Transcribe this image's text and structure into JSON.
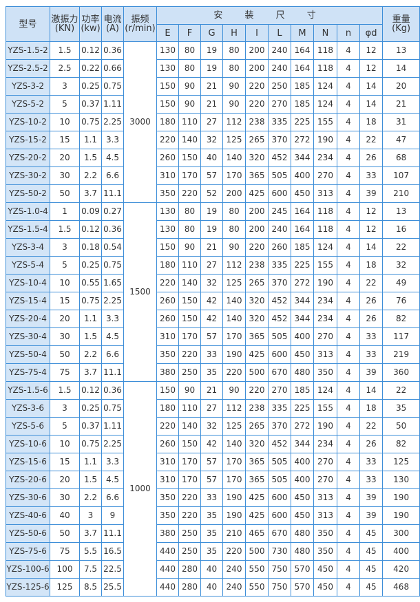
{
  "header": {
    "model": "型号",
    "force": [
      "激振力",
      "(KN)"
    ],
    "power": [
      "功率",
      "(kw)"
    ],
    "current": [
      "电流",
      "(A)"
    ],
    "freq": [
      "振频",
      "(r/min)"
    ],
    "install": "安 装 尺 寸",
    "dims": [
      "E",
      "F",
      "G",
      "H",
      "I",
      "L",
      "M",
      "N",
      "n",
      "φd"
    ],
    "weight": [
      "重量",
      "(Kg)"
    ]
  },
  "groups": [
    {
      "freq": "3000",
      "rows": [
        [
          "YZS-1.5-2",
          "1.5",
          "0.12",
          "0.36",
          "130",
          "80",
          "19",
          "80",
          "200",
          "240",
          "164",
          "118",
          "4",
          "12",
          "13"
        ],
        [
          "YZS-2.5-2",
          "2.5",
          "0.22",
          "0.66",
          "130",
          "80",
          "19",
          "80",
          "200",
          "240",
          "164",
          "118",
          "4",
          "12",
          "14"
        ],
        [
          "YZS-3-2",
          "3",
          "0.25",
          "0.75",
          "150",
          "90",
          "21",
          "90",
          "220",
          "250",
          "185",
          "124",
          "4",
          "14",
          "20"
        ],
        [
          "YZS-5-2",
          "5",
          "0.37",
          "1.11",
          "150",
          "90",
          "21",
          "90",
          "220",
          "270",
          "185",
          "124",
          "4",
          "14",
          "21"
        ],
        [
          "YZS-10-2",
          "10",
          "0.75",
          "2.25",
          "180",
          "110",
          "27",
          "112",
          "238",
          "335",
          "225",
          "155",
          "4",
          "18",
          "31"
        ],
        [
          "YZS-15-2",
          "15",
          "1.1",
          "3.3",
          "220",
          "140",
          "32",
          "125",
          "265",
          "370",
          "272",
          "190",
          "4",
          "22",
          "47"
        ],
        [
          "YZS-20-2",
          "20",
          "1.5",
          "4.5",
          "260",
          "150",
          "40",
          "140",
          "320",
          "452",
          "344",
          "234",
          "4",
          "26",
          "68"
        ],
        [
          "YZS-30-2",
          "30",
          "2.2",
          "6.6",
          "310",
          "170",
          "57",
          "170",
          "365",
          "505",
          "400",
          "270",
          "4",
          "33",
          "107"
        ],
        [
          "YZS-50-2",
          "50",
          "3.7",
          "11.1",
          "350",
          "220",
          "52",
          "200",
          "425",
          "600",
          "450",
          "313",
          "4",
          "39",
          "210"
        ]
      ]
    },
    {
      "freq": "1500",
      "rows": [
        [
          "YZS-1.0-4",
          "1",
          "0.09",
          "0.27",
          "130",
          "80",
          "19",
          "80",
          "200",
          "245",
          "164",
          "118",
          "4",
          "12",
          "13"
        ],
        [
          "YZS-1.5-4",
          "1.5",
          "0.12",
          "0.36",
          "130",
          "80",
          "19",
          "80",
          "200",
          "240",
          "164",
          "118",
          "4",
          "12",
          "16"
        ],
        [
          "YZS-3-4",
          "3",
          "0.18",
          "0.54",
          "150",
          "90",
          "21",
          "90",
          "220",
          "260",
          "185",
          "124",
          "4",
          "14",
          "22"
        ],
        [
          "YZS-5-4",
          "5",
          "0.25",
          "0.75",
          "180",
          "110",
          "27",
          "112",
          "238",
          "335",
          "225",
          "155",
          "4",
          "18",
          "32"
        ],
        [
          "YZS-10-4",
          "10",
          "0.55",
          "1.65",
          "220",
          "140",
          "32",
          "125",
          "265",
          "370",
          "272",
          "190",
          "4",
          "22",
          "49"
        ],
        [
          "YZS-15-4",
          "15",
          "0.75",
          "2.25",
          "260",
          "150",
          "42",
          "140",
          "320",
          "452",
          "344",
          "234",
          "4",
          "26",
          "76"
        ],
        [
          "YZS-20-4",
          "20",
          "1.1",
          "3.3",
          "260",
          "150",
          "42",
          "140",
          "320",
          "452",
          "344",
          "234",
          "4",
          "26",
          "82"
        ],
        [
          "YZS-30-4",
          "30",
          "1.5",
          "4.5",
          "310",
          "170",
          "57",
          "170",
          "365",
          "505",
          "400",
          "270",
          "4",
          "33",
          "117"
        ],
        [
          "YZS-50-4",
          "50",
          "2.2",
          "6.6",
          "350",
          "220",
          "33",
          "190",
          "425",
          "600",
          "450",
          "313",
          "4",
          "33",
          "219"
        ],
        [
          "YZS-75-4",
          "75",
          "3.7",
          "11.1",
          "380",
          "250",
          "35",
          "220",
          "500",
          "670",
          "480",
          "350",
          "4",
          "39",
          "360"
        ]
      ]
    },
    {
      "freq": "1000",
      "rows": [
        [
          "YZS-1.5-6",
          "1.5",
          "0.12",
          "0.36",
          "150",
          "90",
          "21",
          "90",
          "220",
          "270",
          "185",
          "124",
          "4",
          "14",
          "22"
        ],
        [
          "YZS-3-6",
          "3",
          "0.25",
          "0.75",
          "180",
          "110",
          "27",
          "112",
          "238",
          "335",
          "225",
          "155",
          "4",
          "18",
          "35"
        ],
        [
          "YZS-5-6",
          "5",
          "0.37",
          "1.11",
          "220",
          "140",
          "32",
          "125",
          "265",
          "370",
          "272",
          "190",
          "4",
          "22",
          "50"
        ],
        [
          "YZS-10-6",
          "10",
          "0.75",
          "2.25",
          "260",
          "150",
          "42",
          "140",
          "320",
          "452",
          "344",
          "234",
          "4",
          "26",
          "82"
        ],
        [
          "YZS-15-6",
          "15",
          "1.1",
          "3.3",
          "310",
          "170",
          "57",
          "170",
          "365",
          "505",
          "400",
          "270",
          "4",
          "33",
          "125"
        ],
        [
          "YZS-20-6",
          "20",
          "1.5",
          "4.5",
          "310",
          "170",
          "57",
          "170",
          "365",
          "505",
          "400",
          "270",
          "4",
          "33",
          "130"
        ],
        [
          "YZS-30-6",
          "30",
          "2.2",
          "6.6",
          "350",
          "220",
          "33",
          "190",
          "425",
          "600",
          "450",
          "313",
          "4",
          "39",
          "190"
        ],
        [
          "YZS-40-6",
          "40",
          "3",
          "9",
          "350",
          "220",
          "35",
          "190",
          "425",
          "600",
          "450",
          "313",
          "4",
          "39",
          "190"
        ],
        [
          "YZS-50-6",
          "50",
          "3.7",
          "11.1",
          "380",
          "250",
          "35",
          "210",
          "465",
          "670",
          "480",
          "350",
          "4",
          "45",
          "300"
        ],
        [
          "YZS-75-6",
          "75",
          "5.5",
          "16.5",
          "440",
          "250",
          "35",
          "220",
          "500",
          "730",
          "480",
          "350",
          "4",
          "45",
          "400"
        ],
        [
          "YZS-100-6",
          "100",
          "7.5",
          "22.5",
          "440",
          "280",
          "40",
          "240",
          "550",
          "750",
          "570",
          "450",
          "4",
          "45",
          "420"
        ],
        [
          "YZS-125-6",
          "125",
          "8.5",
          "25.5",
          "440",
          "280",
          "40",
          "240",
          "550",
          "750",
          "570",
          "450",
          "4",
          "45",
          "468"
        ]
      ]
    }
  ],
  "colors": {
    "border": "#3d8ed8",
    "header_bg": "#cfe2f6",
    "model_bg": "#d3e5f7"
  }
}
